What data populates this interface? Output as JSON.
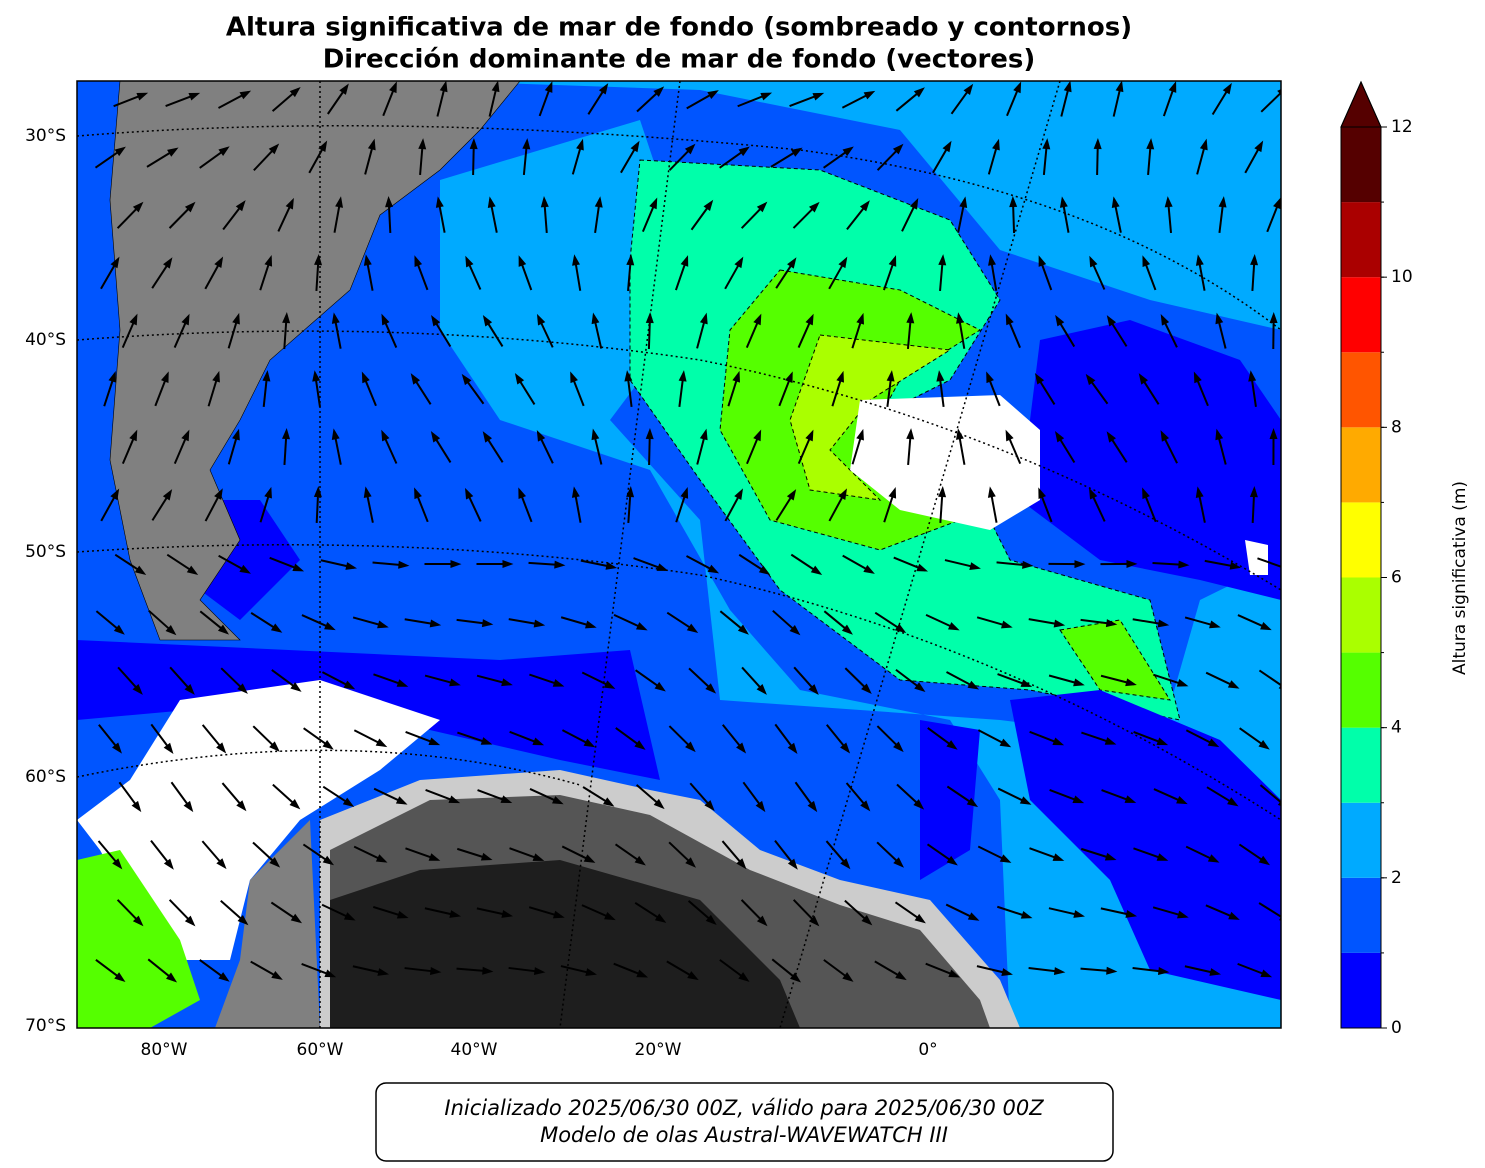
{
  "title": [
    "Altura significativa de mar de fondo (sombreado y contornos)",
    "Dirección dominante de mar de fondo (vectores)"
  ],
  "lat_labels": [
    "30°S",
    "40°S",
    "50°S",
    "60°S",
    "70°S"
  ],
  "lon_labels": [
    "80°W",
    "60°W",
    "40°W",
    "20°W",
    "0°"
  ],
  "colorbar": {
    "label": "Altura significativa (m)",
    "levels": [
      0,
      1,
      2,
      3,
      4,
      5,
      6,
      7,
      8,
      9,
      10,
      11,
      12
    ],
    "colors": [
      "#0000ff",
      "#0055ff",
      "#00aaff",
      "#00ffaa",
      "#55ff00",
      "#aaff00",
      "#ffff00",
      "#ffaa00",
      "#ff5500",
      "#ff0000",
      "#aa0000",
      "#550000"
    ],
    "extend_color": "#550000",
    "ticks": [
      0,
      2,
      4,
      6,
      8,
      10,
      12
    ]
  },
  "footer": [
    "Inicializado 2025/06/30 00Z, válido para 2025/06/30 00Z",
    "Modelo de olas Austral-WAVEWATCH III"
  ]
}
